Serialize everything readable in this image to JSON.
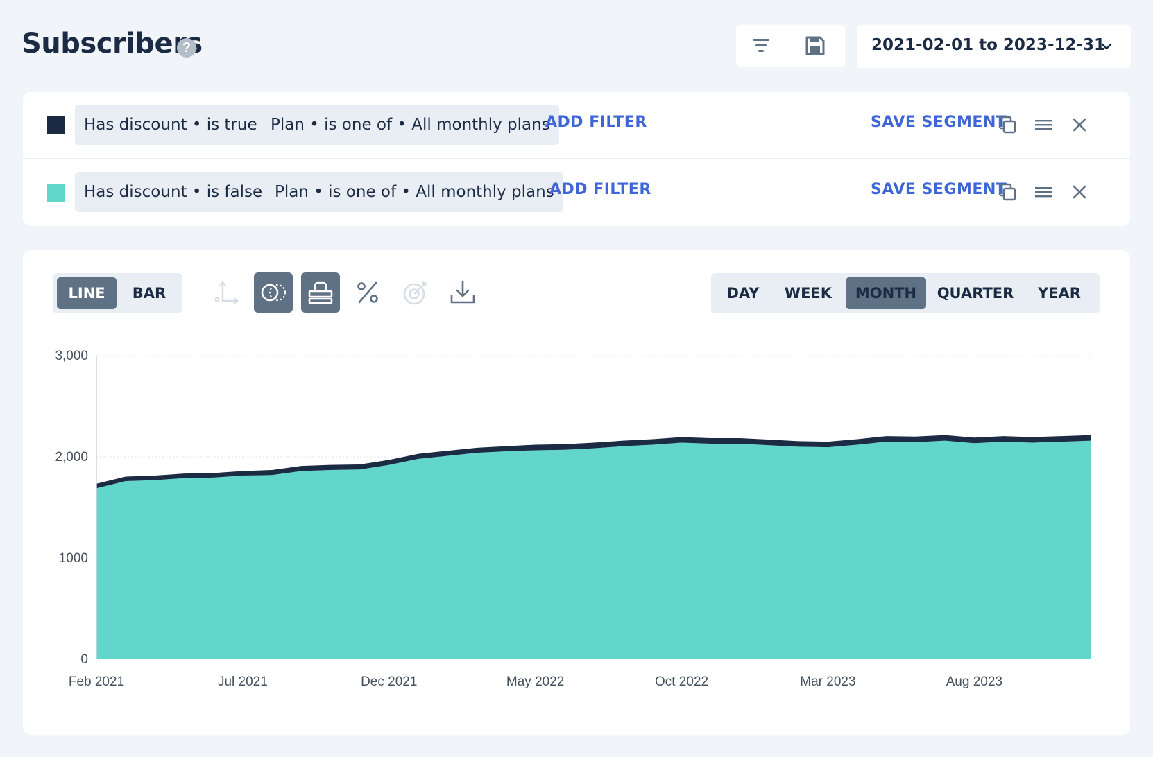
{
  "header": {
    "title": "Subscribers",
    "help_icon": "?",
    "date_range": "2021-02-01 to 2023-12-31"
  },
  "segments": [
    {
      "color": "#1c2b44",
      "filters": [
        "Has discount • is true",
        "Plan • is one of • All monthly plans"
      ],
      "add_filter_label": "ADD FILTER",
      "save_label": "SAVE SEGMENT"
    },
    {
      "color": "#62d6ca",
      "filters": [
        "Has discount • is false",
        "Plan • is one of • All monthly plans"
      ],
      "add_filter_label": "ADD FILTER",
      "save_label": "SAVE SEGMENT"
    }
  ],
  "chart_controls": {
    "chart_type": [
      "LINE",
      "BAR"
    ],
    "selected_type": "LINE",
    "periods": [
      "DAY",
      "WEEK",
      "MONTH",
      "QUARTER",
      "YEAR"
    ],
    "selected_period": "MONTH"
  },
  "chart_data": {
    "type": "area",
    "stacked": true,
    "x": [
      "Feb 2021",
      "Mar 2021",
      "Apr 2021",
      "May 2021",
      "Jun 2021",
      "Jul 2021",
      "Aug 2021",
      "Sep 2021",
      "Oct 2021",
      "Nov 2021",
      "Dec 2021",
      "Jan 2022",
      "Feb 2022",
      "Mar 2022",
      "Apr 2022",
      "May 2022",
      "Jun 2022",
      "Jul 2022",
      "Aug 2022",
      "Sep 2022",
      "Oct 2022",
      "Nov 2022",
      "Dec 2022",
      "Jan 2023",
      "Feb 2023",
      "Mar 2023",
      "Apr 2023",
      "May 2023",
      "Jun 2023",
      "Jul 2023",
      "Aug 2023",
      "Sep 2023",
      "Oct 2023",
      "Nov 2023",
      "Dec 2023"
    ],
    "x_tick_labels": [
      "Feb 2021",
      "Jul 2021",
      "Dec 2021",
      "May 2022",
      "Oct 2022",
      "Mar 2023",
      "Aug 2023"
    ],
    "y_tick_labels": [
      "0",
      "1000",
      "2,000",
      "3,000"
    ],
    "ylim": [
      0,
      3000
    ],
    "series": [
      {
        "name": "Has discount • is false",
        "color": "#62d6ca",
        "values": [
          1690,
          1760,
          1770,
          1790,
          1795,
          1815,
          1820,
          1860,
          1870,
          1875,
          1920,
          1980,
          2010,
          2040,
          2055,
          2065,
          2070,
          2085,
          2105,
          2120,
          2140,
          2130,
          2130,
          2115,
          2100,
          2095,
          2120,
          2150,
          2145,
          2160,
          2135,
          2150,
          2140,
          2150,
          2160
        ]
      },
      {
        "name": "Has discount • is true",
        "color": "#1c2b44",
        "values": [
          45,
          45,
          45,
          45,
          45,
          45,
          50,
          50,
          50,
          50,
          50,
          50,
          50,
          50,
          50,
          55,
          55,
          55,
          55,
          55,
          55,
          55,
          55,
          55,
          55,
          55,
          55,
          55,
          55,
          55,
          55,
          55,
          55,
          55,
          55
        ]
      }
    ]
  }
}
